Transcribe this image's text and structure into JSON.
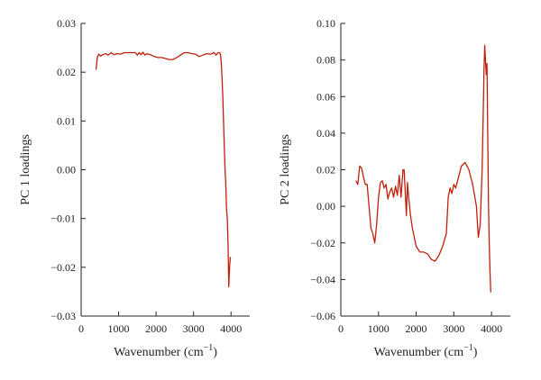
{
  "colors": {
    "series": "#c0200c",
    "axis": "#222222"
  },
  "chart_data": [
    {
      "type": "line",
      "xlabel": "Wavenumber (cm",
      "xlabel_sup": "−1",
      "xlabel_close": ")",
      "ylabel": "PC 1 loadings",
      "xlim": [
        0,
        4500
      ],
      "ylim": [
        -0.03,
        0.03
      ],
      "xticks": [
        0,
        1000,
        2000,
        3000,
        4000
      ],
      "xtick_labels": [
        "0",
        "1000",
        "2000",
        "3000",
        "4000"
      ],
      "yticks": [
        -0.03,
        -0.02,
        -0.01,
        0.0,
        0.01,
        0.02,
        0.03
      ],
      "ytick_labels": [
        "−0.03",
        "−0.02",
        "−0.01",
        "0.00",
        "0.01",
        "0.02",
        "0.03"
      ],
      "grid": false,
      "series": [
        {
          "x": [
            400,
            430,
            470,
            520,
            580,
            650,
            720,
            800,
            880,
            950,
            1050,
            1150,
            1250,
            1350,
            1450,
            1500,
            1550,
            1600,
            1650,
            1700,
            1750,
            1850,
            1950,
            2050,
            2150,
            2250,
            2350,
            2450,
            2550,
            2650,
            2750,
            2850,
            2950,
            3050,
            3150,
            3250,
            3350,
            3450,
            3550,
            3600,
            3650,
            3700,
            3720,
            3740,
            3760,
            3780,
            3800,
            3820,
            3840,
            3860,
            3880,
            3900,
            3920,
            3940,
            3960,
            3980,
            4000
          ],
          "y": [
            0.0205,
            0.023,
            0.0237,
            0.0233,
            0.0236,
            0.0238,
            0.0235,
            0.024,
            0.0236,
            0.0238,
            0.0237,
            0.024,
            0.024,
            0.024,
            0.024,
            0.0235,
            0.024,
            0.0236,
            0.0241,
            0.0235,
            0.0238,
            0.0236,
            0.0232,
            0.023,
            0.023,
            0.0228,
            0.0226,
            0.0226,
            0.023,
            0.0235,
            0.024,
            0.024,
            0.0238,
            0.0237,
            0.0232,
            0.0235,
            0.0238,
            0.0237,
            0.024,
            0.0235,
            0.024,
            0.024,
            0.0235,
            0.022,
            0.019,
            0.015,
            0.01,
            0.005,
            0.0,
            -0.003,
            -0.008,
            -0.01,
            -0.015,
            -0.024,
            -0.02,
            -0.018,
            -0.018
          ]
        }
      ]
    },
    {
      "type": "line",
      "xlabel": "Wavenumber (cm",
      "xlabel_sup": "−1",
      "xlabel_close": ")",
      "ylabel": "PC 2 loadings",
      "xlim": [
        0,
        4500
      ],
      "ylim": [
        -0.06,
        0.1
      ],
      "xticks": [
        0,
        1000,
        2000,
        3000,
        4000
      ],
      "xtick_labels": [
        "0",
        "1000",
        "2000",
        "3000",
        "4000"
      ],
      "yticks": [
        -0.06,
        -0.04,
        -0.02,
        0.0,
        0.02,
        0.04,
        0.06,
        0.08,
        0.1
      ],
      "ytick_labels": [
        "−0.06",
        "−0.04",
        "−0.02",
        "0.00",
        "0.02",
        "0.04",
        "0.06",
        "0.08",
        "0.10"
      ],
      "grid": false,
      "series": [
        {
          "x": [
            400,
            450,
            500,
            550,
            600,
            650,
            700,
            750,
            800,
            850,
            900,
            950,
            1000,
            1050,
            1100,
            1150,
            1200,
            1250,
            1300,
            1350,
            1400,
            1450,
            1500,
            1550,
            1600,
            1650,
            1680,
            1710,
            1740,
            1770,
            1800,
            1850,
            1900,
            1950,
            2000,
            2100,
            2200,
            2300,
            2400,
            2500,
            2600,
            2700,
            2800,
            2850,
            2900,
            2950,
            3000,
            3050,
            3100,
            3200,
            3300,
            3400,
            3500,
            3600,
            3650,
            3700,
            3750,
            3780,
            3800,
            3820,
            3840,
            3860,
            3880,
            3900,
            3920,
            3940,
            3960,
            3980
          ],
          "y": [
            0.014,
            0.012,
            0.022,
            0.021,
            0.016,
            0.012,
            0.012,
            0.0,
            -0.012,
            -0.015,
            -0.02,
            -0.01,
            0.005,
            0.013,
            0.014,
            0.01,
            0.012,
            0.004,
            0.008,
            0.01,
            0.005,
            0.011,
            0.006,
            0.017,
            0.005,
            0.02,
            0.02,
            0.008,
            -0.005,
            0.013,
            0.005,
            -0.005,
            -0.012,
            -0.017,
            -0.022,
            -0.025,
            -0.025,
            -0.026,
            -0.029,
            -0.03,
            -0.027,
            -0.022,
            -0.015,
            0.005,
            0.01,
            0.007,
            0.012,
            0.01,
            0.014,
            0.022,
            0.024,
            0.02,
            0.012,
            0.0,
            -0.017,
            -0.01,
            0.02,
            0.05,
            0.075,
            0.088,
            0.08,
            0.072,
            0.078,
            0.04,
            0.0,
            -0.02,
            -0.035,
            -0.047
          ]
        }
      ]
    }
  ]
}
